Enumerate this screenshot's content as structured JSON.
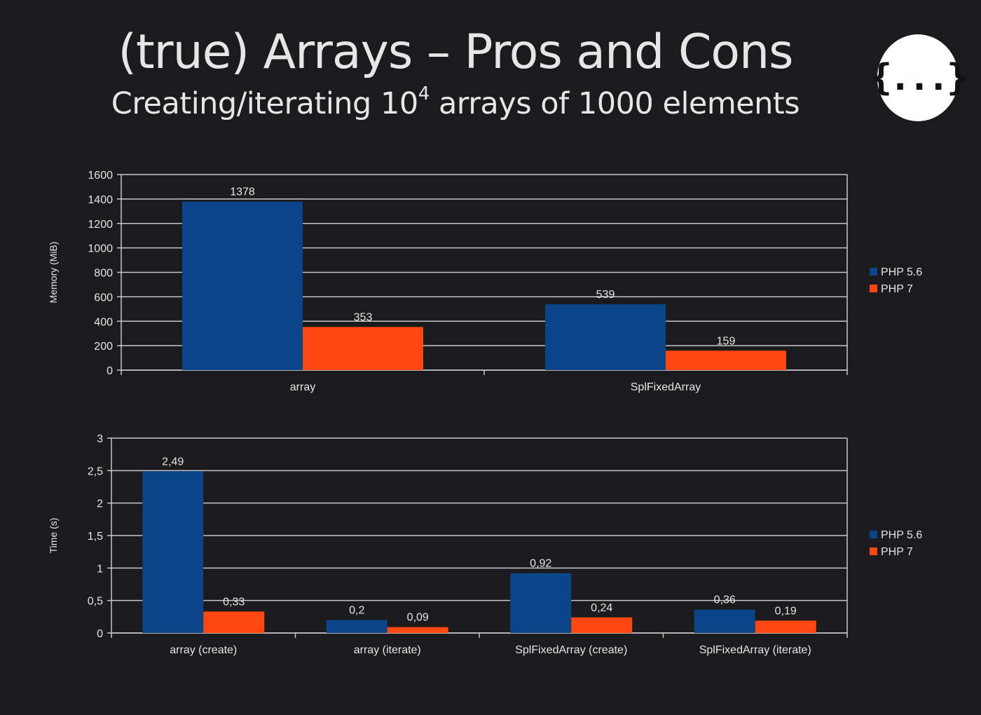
{
  "header": {
    "title": "(true) Arrays – Pros and Cons",
    "subtitle_prefix": "Creating/iterating 10",
    "subtitle_exp": "4",
    "subtitle_suffix": " arrays of 1000 elements",
    "logo_text": "{...}"
  },
  "colors": {
    "php56": "#0a4588",
    "php7": "#ff4811",
    "grid": "#c8c8c8",
    "background": "#1b1a1c"
  },
  "chart_data": [
    {
      "type": "bar",
      "ylabel": "Memory (MiB)",
      "categories": [
        "array",
        "SplFixedArray"
      ],
      "series": [
        {
          "name": "PHP 5.6",
          "values": [
            1378,
            539
          ],
          "labels": [
            "1378",
            "539"
          ]
        },
        {
          "name": "PHP 7",
          "values": [
            353,
            159
          ],
          "labels": [
            "353",
            "159"
          ]
        }
      ],
      "ylim": [
        0,
        1600
      ],
      "yticks": [
        0,
        200,
        400,
        600,
        800,
        1000,
        1200,
        1400,
        1600
      ],
      "ytick_labels": [
        "0",
        "200",
        "400",
        "600",
        "800",
        "1000",
        "1200",
        "1400",
        "1600"
      ],
      "grid": true,
      "legend": "right"
    },
    {
      "type": "bar",
      "ylabel": "Time (s)",
      "categories": [
        "array (create)",
        "array (iterate)",
        "SplFixedArray (create)",
        "SplFixedArray (iterate)"
      ],
      "series": [
        {
          "name": "PHP 5.6",
          "values": [
            2.49,
            0.2,
            0.92,
            0.36
          ],
          "labels": [
            "2,49",
            "0,2",
            "0,92",
            "0,36"
          ]
        },
        {
          "name": "PHP 7",
          "values": [
            0.33,
            0.09,
            0.24,
            0.19
          ],
          "labels": [
            "0,33",
            "0,09",
            "0,24",
            "0,19"
          ]
        }
      ],
      "ylim": [
        0,
        3
      ],
      "yticks": [
        0,
        0.5,
        1,
        1.5,
        2,
        2.5,
        3
      ],
      "ytick_labels": [
        "0",
        "0,5",
        "1",
        "1,5",
        "2",
        "2,5",
        "3"
      ],
      "grid": true,
      "legend": "right"
    }
  ]
}
